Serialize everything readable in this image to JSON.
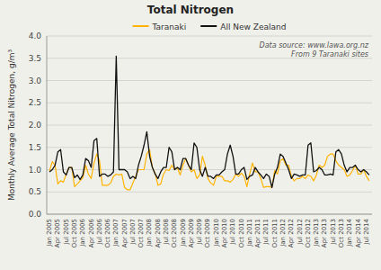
{
  "chart_data": {
    "type": "line",
    "title": "Total Nitrogen",
    "ylabel": "Monthly Average Total Nitrogen, g/m³",
    "annotation": "Data source: www.lawa.org.nz\nFrom 9 Taranaki sites",
    "categories": [
      "Jan\n2005",
      null,
      null,
      "Apr\n2005",
      null,
      null,
      "Jul\n2005",
      null,
      null,
      "Oct\n2005",
      null,
      null,
      "Jan\n2006",
      null,
      null,
      "Apr\n2006",
      null,
      null,
      "Jul\n2006",
      null,
      null,
      "Oct\n2006",
      null,
      null,
      "Jan\n2007",
      null,
      null,
      "Apr\n2007",
      null,
      null,
      "Jul\n2007",
      null,
      null,
      "Oct\n2007",
      null,
      null,
      "Jan\n2008",
      null,
      null,
      "Apr\n2008",
      null,
      null,
      "Jul\n2008",
      null,
      null,
      "Oct\n2008",
      null,
      null,
      "Jan\n2009",
      null,
      null,
      "Apr\n2009",
      null,
      null,
      "Jul\n2009",
      null,
      null,
      "Oct\n2009",
      null,
      null,
      "Jan\n2010",
      null,
      null,
      "Apr\n2010",
      null,
      null,
      "Jul\n2010",
      null,
      null,
      "Oct\n2010",
      null,
      null,
      "Jan\n2011",
      null,
      null,
      "Apr\n2011",
      null,
      null,
      "Jul\n2011",
      null,
      null,
      "Oct\n2011",
      null,
      null,
      "Jan\n2012",
      null,
      null,
      "Apr\n2012",
      null,
      null,
      "Jul\n2012",
      null,
      null,
      "Oct\n2012",
      null,
      null,
      "Jan\n2013",
      null,
      null,
      "Apr\n2013",
      null,
      null,
      "Jul\n2013",
      null,
      null,
      "Oct\n2013",
      null,
      null,
      "Jan\n2014",
      null,
      null,
      "Apr\n2014",
      null,
      null,
      "Jul\n2014",
      null
    ],
    "series": [
      {
        "name": "Taranaki",
        "color": "#FFB300",
        "values": [
          0.97,
          1.18,
          1.1,
          0.68,
          0.75,
          0.72,
          0.9,
          1.05,
          1.05,
          0.62,
          0.68,
          0.75,
          0.82,
          1.1,
          0.9,
          0.8,
          1.15,
          1.35,
          1.2,
          0.65,
          0.65,
          0.65,
          0.7,
          0.85,
          0.9,
          0.88,
          0.9,
          0.6,
          0.55,
          0.55,
          0.7,
          0.85,
          1.0,
          1.0,
          1.0,
          1.35,
          1.45,
          1.05,
          0.92,
          0.65,
          0.68,
          0.9,
          1.0,
          0.98,
          1.1,
          1.0,
          1.05,
          0.88,
          1.1,
          1.25,
          1.1,
          0.95,
          1.0,
          0.8,
          0.88,
          1.3,
          1.1,
          0.8,
          0.7,
          0.65,
          0.85,
          0.85,
          0.85,
          0.75,
          0.75,
          0.72,
          0.78,
          0.9,
          0.85,
          0.92,
          0.85,
          0.62,
          0.9,
          1.15,
          0.95,
          0.95,
          0.8,
          0.6,
          0.62,
          0.62,
          0.6,
          0.98,
          0.9,
          1.2,
          1.25,
          1.1,
          1.1,
          0.85,
          0.75,
          0.8,
          0.8,
          0.85,
          0.8,
          0.88,
          0.85,
          0.75,
          0.88,
          1.1,
          1.05,
          1.1,
          1.3,
          1.35,
          1.35,
          1.2,
          1.1,
          1.05,
          1.0,
          0.85,
          0.88,
          0.98,
          1.1,
          0.9,
          0.9,
          1.0,
          0.85,
          0.75
        ]
      },
      {
        "name": "All New Zealand",
        "color": "#111111",
        "values": [
          0.95,
          1.0,
          1.1,
          1.4,
          1.45,
          0.95,
          0.88,
          1.05,
          1.05,
          0.82,
          0.88,
          0.78,
          0.88,
          1.25,
          1.2,
          1.05,
          1.65,
          1.7,
          0.85,
          0.9,
          0.9,
          0.85,
          0.88,
          0.95,
          3.55,
          1.0,
          1.0,
          1.0,
          0.95,
          0.8,
          0.85,
          0.8,
          1.1,
          1.3,
          1.55,
          1.85,
          1.3,
          1.05,
          0.9,
          0.8,
          0.95,
          1.05,
          1.05,
          1.5,
          1.4,
          1.0,
          1.05,
          1.0,
          1.25,
          1.25,
          1.1,
          1.0,
          1.6,
          1.5,
          1.0,
          0.85,
          1.05,
          0.85,
          0.85,
          0.8,
          0.88,
          0.88,
          0.95,
          1.0,
          1.35,
          1.55,
          1.3,
          0.9,
          0.9,
          1.0,
          1.05,
          0.78,
          0.85,
          0.88,
          1.05,
          0.95,
          0.88,
          0.8,
          0.9,
          0.85,
          0.6,
          0.9,
          1.05,
          1.35,
          1.3,
          1.15,
          1.0,
          0.8,
          0.9,
          0.88,
          0.85,
          0.88,
          0.88,
          1.55,
          1.6,
          0.95,
          0.98,
          1.05,
          1.0,
          0.88,
          0.88,
          0.9,
          0.88,
          1.4,
          1.45,
          1.35,
          1.1,
          0.95,
          1.05,
          1.05,
          1.1,
          1.0,
          0.95,
          1.0,
          0.95,
          0.88
        ]
      }
    ],
    "ylim": [
      0.0,
      4.0
    ],
    "yticks": [
      {
        "value": 0.0,
        "label": "0.0"
      },
      0.5,
      {
        "value": 1.0,
        "label": "1.0"
      },
      1.5,
      {
        "value": 2.0,
        "label": "2.0"
      },
      2.5,
      {
        "value": 3.0,
        "label": "3.0"
      },
      3.5,
      {
        "value": 4.0,
        "label": "4.0"
      }
    ],
    "grid": true,
    "legend": "top"
  }
}
